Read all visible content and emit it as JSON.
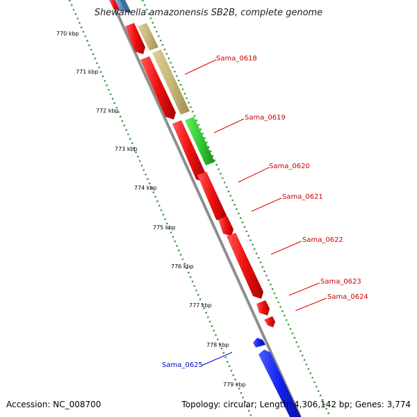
{
  "title": "Shewanella amazonensis SB2B, complete genome",
  "footer": {
    "accession": "Accession: NC_008700",
    "info": "Topology: circular; Length: 4,306,142 bp; Genes: 3,774"
  },
  "colors": {
    "backbone": "#8a8a8a",
    "tick_dots": "#2e8b2e",
    "cds_red": "#ee1111",
    "trna_tan": "#c8b878",
    "rrna_green": "#33cc33",
    "reverse_blue": "#1122ee",
    "label_red": "#cc0000",
    "label_blue": "#0000cc"
  },
  "scale_labels": [
    "770 kbp",
    "771 kbp",
    "772 kbp",
    "773 kbp",
    "774 kbp",
    "775 kbp",
    "776 kbp",
    "777 kbp",
    "778 kbp",
    "779 kbp"
  ],
  "forward_labels": [
    "Sama_0618",
    "Sama_0619",
    "Sama_0620",
    "Sama_0621",
    "Sama_0622",
    "Sama_0623",
    "Sama_0624"
  ],
  "reverse_labels": [
    "Sama_0625"
  ]
}
